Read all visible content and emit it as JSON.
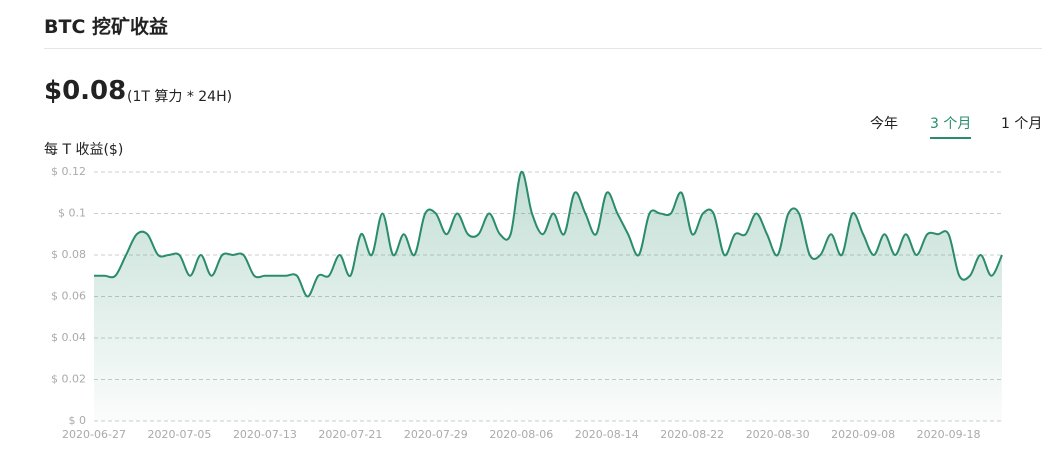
{
  "title": "BTC 挖矿收益",
  "summary": {
    "value": "$0.08",
    "note": "(1T 算力 * 24H)"
  },
  "tabs": [
    "今年",
    "3 个月",
    "1 个月"
  ],
  "active_tab": 1,
  "chart_data": {
    "type": "area",
    "y_label": "每 T 收益($)",
    "color": "#2a8c6a",
    "grid": true,
    "ylim": [
      0,
      0.12
    ],
    "yticks": [
      {
        "value": 0,
        "label": "$ 0"
      },
      {
        "value": 0.02,
        "label": "$ 0.02"
      },
      {
        "value": 0.04,
        "label": "$ 0.04"
      },
      {
        "value": 0.06,
        "label": "$ 0.06"
      },
      {
        "value": 0.08,
        "label": "$ 0.08"
      },
      {
        "value": 0.1,
        "label": "$ 0.1"
      },
      {
        "value": 0.12,
        "label": "$ 0.12"
      }
    ],
    "categories": [
      "2020-06-27",
      null,
      null,
      null,
      null,
      null,
      null,
      null,
      "2020-07-05",
      null,
      null,
      null,
      null,
      null,
      null,
      null,
      "2020-07-13",
      null,
      null,
      null,
      null,
      null,
      null,
      null,
      "2020-07-21",
      null,
      null,
      null,
      null,
      null,
      null,
      null,
      "2020-07-29",
      null,
      null,
      null,
      null,
      null,
      null,
      null,
      "2020-08-06",
      null,
      null,
      null,
      null,
      null,
      null,
      null,
      "2020-08-14",
      null,
      null,
      null,
      null,
      null,
      null,
      null,
      "2020-08-22",
      null,
      null,
      null,
      null,
      null,
      null,
      null,
      "2020-08-30",
      null,
      null,
      null,
      null,
      null,
      null,
      null,
      "2020-09-08",
      null,
      null,
      null,
      null,
      null,
      null,
      null,
      "2020-09-18",
      null,
      null,
      null,
      null,
      null
    ],
    "values": [
      0.07,
      0.07,
      0.07,
      0.08,
      0.09,
      0.09,
      0.08,
      0.08,
      0.08,
      0.07,
      0.08,
      0.07,
      0.08,
      0.08,
      0.08,
      0.07,
      0.07,
      0.07,
      0.07,
      0.07,
      0.06,
      0.07,
      0.07,
      0.08,
      0.07,
      0.09,
      0.08,
      0.1,
      0.08,
      0.09,
      0.08,
      0.1,
      0.1,
      0.09,
      0.1,
      0.09,
      0.09,
      0.1,
      0.09,
      0.09,
      0.12,
      0.1,
      0.09,
      0.1,
      0.09,
      0.11,
      0.1,
      0.09,
      0.11,
      0.1,
      0.09,
      0.08,
      0.1,
      0.1,
      0.1,
      0.11,
      0.09,
      0.1,
      0.1,
      0.08,
      0.09,
      0.09,
      0.1,
      0.09,
      0.08,
      0.1,
      0.1,
      0.08,
      0.08,
      0.09,
      0.08,
      0.1,
      0.09,
      0.08,
      0.09,
      0.08,
      0.09,
      0.08,
      0.09,
      0.09,
      0.09,
      0.07,
      0.07,
      0.08,
      0.07,
      0.08
    ]
  }
}
